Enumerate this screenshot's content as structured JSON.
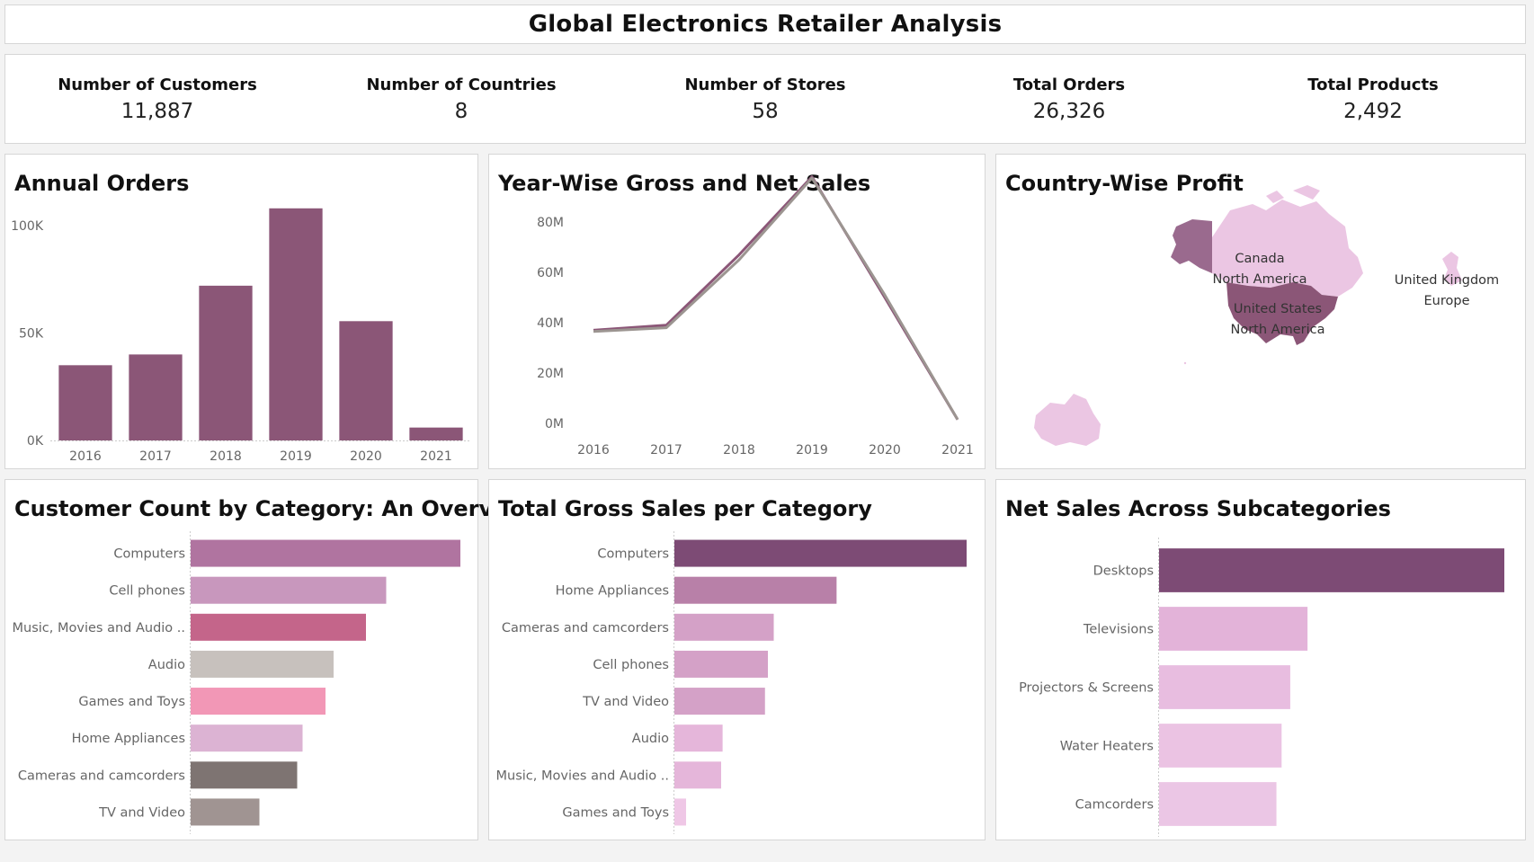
{
  "header": {
    "title": "Global Electronics Retailer Analysis"
  },
  "kpis": [
    {
      "label": "Number of Customers",
      "value": "11,887"
    },
    {
      "label": "Number of Countries",
      "value": "8"
    },
    {
      "label": "Number of Stores",
      "value": "58"
    },
    {
      "label": "Total Orders",
      "value": "26,326"
    },
    {
      "label": "Total Products",
      "value": "2,492"
    }
  ],
  "chart_data": [
    {
      "type": "bar",
      "title": "Annual Orders",
      "categories": [
        "2016",
        "2017",
        "2018",
        "2019",
        "2020",
        "2021"
      ],
      "values": [
        35000,
        40000,
        72000,
        108000,
        55500,
        6000
      ],
      "ylim": [
        0,
        110000
      ],
      "yticks": [
        0,
        50000,
        100000
      ],
      "ytick_labels": [
        "0K",
        "50K",
        "100K"
      ],
      "color": "#8b5677",
      "grid": false
    },
    {
      "type": "line",
      "title": "Year-Wise Gross and Net Sales",
      "x": [
        "2016",
        "2017",
        "2018",
        "2019",
        "2020",
        "2021"
      ],
      "series": [
        {
          "values": [
            37000000,
            39000000,
            67000000,
            98000000,
            50000000,
            1500000
          ],
          "color": "#8b5677"
        },
        {
          "values": [
            36500000,
            38000000,
            65000000,
            97500000,
            51000000,
            1500000
          ],
          "color": "#9c9591"
        }
      ],
      "ylim": [
        0,
        90000000
      ],
      "yticks": [
        0,
        20000000,
        40000000,
        60000000,
        80000000
      ],
      "ytick_labels": [
        "0M",
        "20M",
        "40M",
        "60M",
        "80M"
      ],
      "grid": false
    },
    {
      "type": "map",
      "title": "Country-Wise Profit",
      "labels": [
        {
          "country": "Canada",
          "continent": "North America"
        },
        {
          "country": "United States",
          "continent": "North America"
        },
        {
          "country": "United Kingdom",
          "continent": "Europe"
        }
      ]
    },
    {
      "type": "bar",
      "orientation": "horizontal",
      "title": "Customer Count by Category: An Overview",
      "categories": [
        "Computers",
        "Cell phones",
        "Music, Movies and Audio ..",
        "Audio",
        "Games and Toys",
        "Home Appliances",
        "Cameras and camcorders",
        "TV and Video"
      ],
      "values": [
        100,
        72.5,
        65,
        53,
        50,
        41.5,
        39.5,
        25.5
      ],
      "colors": [
        "#b074a0",
        "#c897bd",
        "#c4658a",
        "#c7c1bd",
        "#f297b6",
        "#dcb3d3",
        "#7e7472",
        "#a09492"
      ]
    },
    {
      "type": "bar",
      "orientation": "horizontal",
      "title": "Total Gross Sales per Category",
      "categories": [
        "Computers",
        "Home Appliances",
        "Cameras and camcorders",
        "Cell phones",
        "TV and Video",
        "Audio",
        "Music, Movies and Audio ..",
        "Games and Toys"
      ],
      "values": [
        100,
        55.5,
        34,
        32,
        31,
        16.5,
        16,
        4
      ],
      "colors": [
        "#7d4b75",
        "#b880a8",
        "#d4a1c7",
        "#d4a1c7",
        "#d4a1c7",
        "#e5b6da",
        "#e5b6da",
        "#efc7e6"
      ]
    },
    {
      "type": "bar",
      "orientation": "horizontal",
      "title": "Net Sales Across Subcategories",
      "categories": [
        "Desktops",
        "Televisions",
        "Projectors & Screens",
        "Water Heaters",
        "Camcorders"
      ],
      "values": [
        100,
        43,
        38,
        35.5,
        34
      ],
      "colors": [
        "#7d4b75",
        "#e3b3d9",
        "#e8bde0",
        "#ebc3e3",
        "#ebc6e5"
      ]
    }
  ]
}
